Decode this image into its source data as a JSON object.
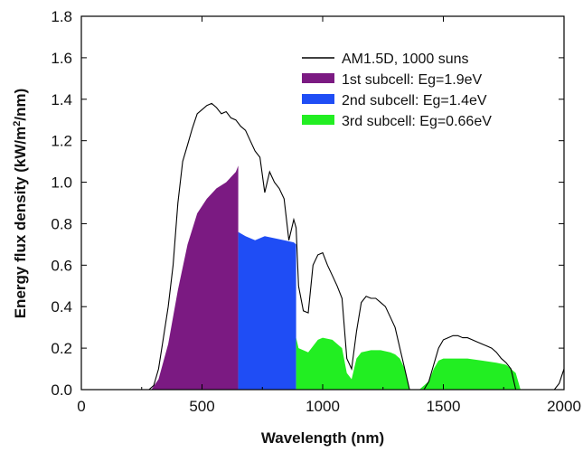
{
  "chart_data": {
    "type": "area",
    "xlabel": "Wavelength (nm)",
    "ylabel_prefix": "Energy flux density (kW/m",
    "ylabel_sup": "2",
    "ylabel_suffix": "/nm)",
    "xlim": [
      0,
      2000
    ],
    "ylim": [
      0,
      1.8
    ],
    "xticks": [
      0,
      500,
      1000,
      1500,
      2000
    ],
    "xtick_labels": [
      "0",
      "500",
      "1000",
      "1500",
      "2000"
    ],
    "yticks": [
      0,
      0.2,
      0.4,
      0.6,
      0.8,
      1.0,
      1.2,
      1.4,
      1.6,
      1.8
    ],
    "ytick_labels": [
      "0.0",
      "0.2",
      "0.4",
      "0.6",
      "0.8",
      "1.0",
      "1.2",
      "1.4",
      "1.6",
      "1.8"
    ],
    "grid": false,
    "legend_position": "top-right",
    "series": [
      {
        "name": "AM1.5D, 1000 suns",
        "kind": "line",
        "color": "#000000",
        "x": [
          280,
          300,
          320,
          340,
          360,
          380,
          400,
          420,
          440,
          460,
          480,
          500,
          520,
          540,
          560,
          580,
          600,
          620,
          640,
          660,
          680,
          700,
          720,
          740,
          760,
          780,
          800,
          820,
          840,
          860,
          880,
          890,
          900,
          920,
          940,
          960,
          980,
          1000,
          1020,
          1040,
          1060,
          1080,
          1100,
          1120,
          1140,
          1160,
          1180,
          1200,
          1220,
          1240,
          1260,
          1280,
          1300,
          1320,
          1340,
          1360,
          1380,
          1400,
          1420,
          1440,
          1460,
          1480,
          1500,
          1520,
          1540,
          1560,
          1580,
          1600,
          1620,
          1640,
          1660,
          1680,
          1700,
          1720,
          1740,
          1760,
          1780,
          1800,
          1820,
          1840,
          1860,
          1880,
          1900,
          1920,
          1940,
          1960,
          1980,
          2000
        ],
        "y": [
          0.0,
          0.02,
          0.1,
          0.25,
          0.4,
          0.6,
          0.9,
          1.1,
          1.18,
          1.26,
          1.33,
          1.35,
          1.37,
          1.38,
          1.36,
          1.33,
          1.34,
          1.31,
          1.3,
          1.27,
          1.25,
          1.2,
          1.15,
          1.12,
          0.95,
          1.05,
          1.0,
          0.97,
          0.92,
          0.72,
          0.82,
          0.78,
          0.5,
          0.38,
          0.37,
          0.6,
          0.65,
          0.66,
          0.6,
          0.55,
          0.5,
          0.44,
          0.15,
          0.1,
          0.28,
          0.42,
          0.45,
          0.44,
          0.44,
          0.42,
          0.4,
          0.35,
          0.3,
          0.2,
          0.1,
          0.0,
          0.0,
          0.0,
          0.0,
          0.04,
          0.12,
          0.2,
          0.24,
          0.25,
          0.26,
          0.26,
          0.25,
          0.25,
          0.24,
          0.23,
          0.22,
          0.21,
          0.2,
          0.18,
          0.15,
          0.13,
          0.1,
          0.0,
          0.0,
          0.0,
          0.0,
          0.0,
          0.0,
          0.0,
          0.0,
          0.0,
          0.03,
          0.1
        ]
      },
      {
        "name": "1st subcell: Eg=1.9eV",
        "kind": "area",
        "color": "#7b1a82",
        "x": [
          290,
          320,
          360,
          400,
          440,
          480,
          520,
          560,
          600,
          640,
          650
        ],
        "y": [
          0.0,
          0.05,
          0.22,
          0.48,
          0.7,
          0.85,
          0.92,
          0.97,
          1.0,
          1.05,
          1.08
        ]
      },
      {
        "name": "2nd subcell: Eg=1.4eV",
        "kind": "area",
        "color": "#1f4df5",
        "x": [
          650,
          680,
          720,
          760,
          800,
          840,
          880,
          890
        ],
        "y": [
          0.76,
          0.74,
          0.72,
          0.74,
          0.73,
          0.72,
          0.71,
          0.7
        ]
      },
      {
        "name": "3rd subcell: Eg=0.66eV",
        "kind": "area",
        "color": "#22ee22",
        "x": [
          890,
          900,
          940,
          980,
          1000,
          1040,
          1080,
          1100,
          1120,
          1140,
          1160,
          1200,
          1240,
          1280,
          1300,
          1320,
          1340,
          1360,
          1400,
          1440,
          1460,
          1480,
          1500,
          1540,
          1600,
          1660,
          1720,
          1760,
          1800,
          1820
        ],
        "y": [
          0.25,
          0.2,
          0.18,
          0.24,
          0.25,
          0.24,
          0.2,
          0.08,
          0.05,
          0.15,
          0.18,
          0.19,
          0.19,
          0.18,
          0.17,
          0.15,
          0.1,
          0.0,
          0.0,
          0.04,
          0.1,
          0.14,
          0.15,
          0.15,
          0.15,
          0.14,
          0.13,
          0.12,
          0.08,
          0.0
        ]
      }
    ]
  }
}
